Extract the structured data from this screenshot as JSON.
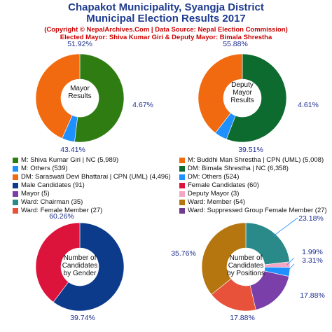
{
  "header": {
    "title_line1": "Chapakot Municipality, Syangja District",
    "title_line2": "Municipal Election Results 2017",
    "sub_line1": "(Copyright © NepalArchives.Com | Data Source: Nepal Election Commission)",
    "sub_line2": "Elected Mayor: Shiva Kumar Giri & Deputy Mayor: Bimala Shrestha"
  },
  "colors": {
    "green": "#2f7d12",
    "blue": "#1e90ff",
    "orange": "#f26a10",
    "darkgreen": "#0d6b2f",
    "navy": "#0c3b8c",
    "crimson": "#dc143c",
    "purple": "#7a3fa8",
    "pink": "#f4a6c4",
    "teal": "#2a8a8a",
    "gold": "#b5760f",
    "violet": "#6e3a8e",
    "label": "#1f2f8f"
  },
  "legend": {
    "left": [
      {
        "label": "M: Shiva Kumar Giri | NC (5,989)",
        "color": "#2f7d12"
      },
      {
        "label": "M: Others (539)",
        "color": "#1e90ff"
      },
      {
        "label": "DM: Saraswati Devi Bhattarai | CPN (UML) (4,496)",
        "color": "#f26a10"
      },
      {
        "label": "Male Candidates (91)",
        "color": "#0c3b8c"
      },
      {
        "label": "Mayor (5)",
        "color": "#7a3fa8"
      },
      {
        "label": "Ward: Chairman (35)",
        "color": "#2a8a8a"
      },
      {
        "label": "Ward: Female Member (27)",
        "color": "#e8513a"
      }
    ],
    "right": [
      {
        "label": "M: Buddhi Man Shrestha | CPN (UML) (5,008)",
        "color": "#f26a10"
      },
      {
        "label": "DM: Bimala Shrestha | NC (6,358)",
        "color": "#0d6b2f"
      },
      {
        "label": "DM: Others (524)",
        "color": "#1e90ff"
      },
      {
        "label": "Female Candidates (60)",
        "color": "#dc143c"
      },
      {
        "label": "Deputy Mayor (3)",
        "color": "#f4a6c4"
      },
      {
        "label": "Ward: Member (54)",
        "color": "#b5760f"
      },
      {
        "label": "Ward: Suppressed Group Female Member (27)",
        "color": "#6e3a8e"
      }
    ]
  },
  "chart_data": [
    {
      "type": "pie",
      "center_label": [
        "Mayor",
        "Results"
      ],
      "slices": [
        {
          "name": "M: Shiva Kumar Giri | NC",
          "value": 5989,
          "pct_label": "51.92%",
          "color": "#2f7d12"
        },
        {
          "name": "M: Others",
          "value": 539,
          "pct_label": "4.67%",
          "color": "#1e90ff"
        },
        {
          "name": "M: Buddhi Man Shrestha | CPN (UML)",
          "value": 5008,
          "pct_label": "43.41%",
          "color": "#f26a10"
        }
      ]
    },
    {
      "type": "pie",
      "center_label": [
        "Deputy",
        "Mayor",
        "Results"
      ],
      "slices": [
        {
          "name": "DM: Bimala Shrestha | NC",
          "value": 6358,
          "pct_label": "55.88%",
          "color": "#0d6b2f"
        },
        {
          "name": "DM: Others",
          "value": 524,
          "pct_label": "4.61%",
          "color": "#1e90ff"
        },
        {
          "name": "DM: Saraswati Devi Bhattarai | CPN (UML)",
          "value": 4496,
          "pct_label": "39.51%",
          "color": "#f26a10"
        }
      ]
    },
    {
      "type": "pie",
      "center_label": [
        "Number of",
        "Candidates",
        "by Gender"
      ],
      "slices": [
        {
          "name": "Male Candidates",
          "value": 91,
          "pct_label": "60.26%",
          "color": "#0c3b8c"
        },
        {
          "name": "Female Candidates",
          "value": 60,
          "pct_label": "39.74%",
          "color": "#dc143c"
        }
      ]
    },
    {
      "type": "pie",
      "center_label": [
        "Number of",
        "Candidates",
        "by Positions"
      ],
      "slices": [
        {
          "name": "Ward: Chairman",
          "value": 35,
          "pct_label": "23.18%",
          "color": "#2a8a8a"
        },
        {
          "name": "Deputy Mayor",
          "value": 3,
          "pct_label": "1.99%",
          "color": "#f4a6c4"
        },
        {
          "name": "Mayor",
          "value": 5,
          "pct_label": "3.31%",
          "color": "#1e90ff"
        },
        {
          "name": "Ward: Suppressed Group Female Member",
          "value": 27,
          "pct_label": "17.88%",
          "color": "#7a3fa8"
        },
        {
          "name": "Ward: Female Member",
          "value": 27,
          "pct_label": "17.88%",
          "color": "#e8513a"
        },
        {
          "name": "Ward: Member",
          "value": 54,
          "pct_label": "35.76%",
          "color": "#b5760f"
        }
      ]
    }
  ]
}
